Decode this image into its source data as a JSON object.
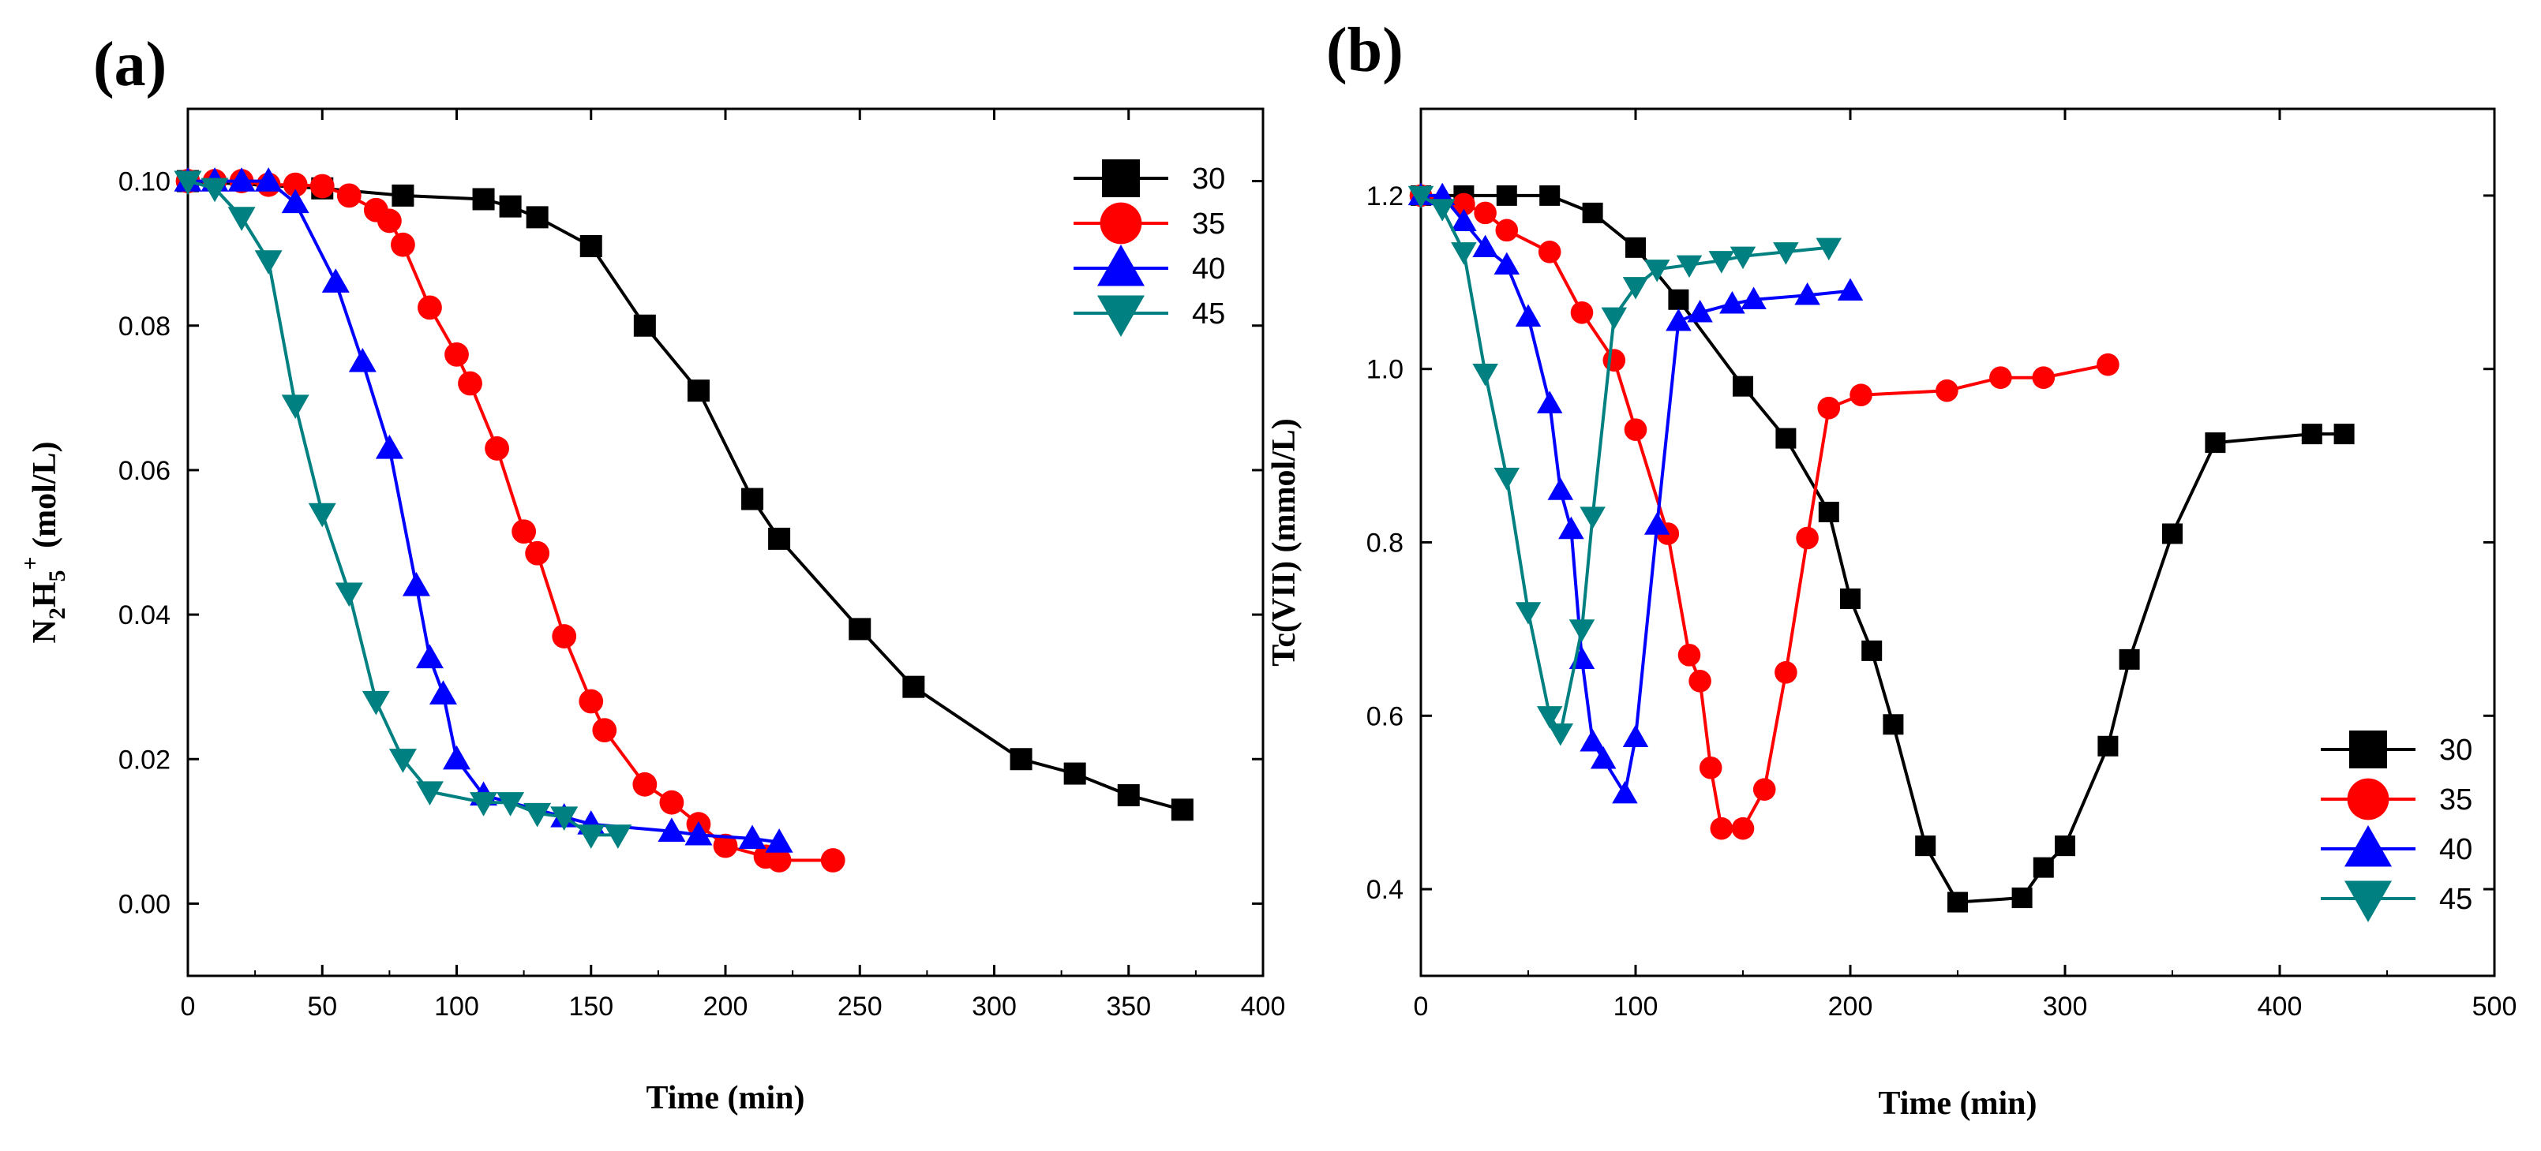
{
  "chart_data": [
    {
      "type": "line",
      "panel_label": "(a)",
      "xlabel": "Time (min)",
      "ylabel_main": "N",
      "ylabel_sub1": "2",
      "ylabel_mid": "H",
      "ylabel_sub2": "5",
      "ylabel_sup": "+",
      "ylabel_tail": " (mol/L)",
      "xlim": [
        0,
        400
      ],
      "ylim": [
        -0.01,
        0.11
      ],
      "xticks": [
        0,
        50,
        100,
        150,
        200,
        250,
        300,
        350,
        400
      ],
      "xtick_labels": [
        "0",
        "50",
        "100",
        "150",
        "200",
        "250",
        "300",
        "350",
        "400"
      ],
      "yticks": [
        0.0,
        0.02,
        0.04,
        0.06,
        0.08,
        0.1
      ],
      "ytick_labels": [
        "0.00",
        "0.02",
        "0.04",
        "0.06",
        "0.08",
        "0.10"
      ],
      "legend_position": "top-right",
      "series": [
        {
          "name": "30",
          "color": "#000000",
          "marker": "square",
          "x": [
            0,
            50,
            80,
            110,
            120,
            130,
            150,
            170,
            190,
            210,
            220,
            250,
            270,
            310,
            330,
            350,
            370
          ],
          "y": [
            0.1,
            0.099,
            0.098,
            0.0975,
            0.0965,
            0.095,
            0.091,
            0.08,
            0.071,
            0.056,
            0.0505,
            0.038,
            0.03,
            0.02,
            0.018,
            0.015,
            0.013
          ]
        },
        {
          "name": "35",
          "color": "#ff0000",
          "marker": "circle",
          "x": [
            0,
            10,
            20,
            30,
            40,
            50,
            60,
            70,
            75,
            80,
            90,
            100,
            105,
            115,
            125,
            130,
            140,
            150,
            155,
            170,
            180,
            190,
            200,
            215,
            220,
            240
          ],
          "y": [
            0.1,
            0.1,
            0.1,
            0.0995,
            0.0995,
            0.0993,
            0.098,
            0.096,
            0.0945,
            0.0912,
            0.0825,
            0.076,
            0.072,
            0.063,
            0.0515,
            0.0485,
            0.037,
            0.028,
            0.024,
            0.0165,
            0.014,
            0.011,
            0.008,
            0.0065,
            0.006,
            0.006
          ]
        },
        {
          "name": "40",
          "color": "#0000ff",
          "marker": "triangle-up",
          "x": [
            0,
            10,
            20,
            30,
            40,
            55,
            65,
            75,
            85,
            90,
            95,
            100,
            110,
            140,
            150,
            180,
            190,
            210,
            220
          ],
          "y": [
            0.1,
            0.1,
            0.1,
            0.1,
            0.097,
            0.086,
            0.075,
            0.063,
            0.044,
            0.034,
            0.029,
            0.02,
            0.015,
            0.012,
            0.011,
            0.01,
            0.0095,
            0.009,
            0.0085
          ]
        },
        {
          "name": "45",
          "color": "#008080",
          "marker": "triangle-down",
          "x": [
            0,
            10,
            20,
            30,
            40,
            50,
            60,
            70,
            80,
            90,
            110,
            120,
            130,
            140,
            150,
            160
          ],
          "y": [
            0.1,
            0.099,
            0.095,
            0.089,
            0.069,
            0.054,
            0.043,
            0.028,
            0.02,
            0.0155,
            0.014,
            0.014,
            0.0125,
            0.012,
            0.0095,
            0.0095
          ]
        }
      ]
    },
    {
      "type": "line",
      "panel_label": "(b)",
      "xlabel": "Time (min)",
      "ylabel": "Tc(VII) (mmol/L)",
      "xlim": [
        0,
        500
      ],
      "ylim": [
        0.3,
        1.3
      ],
      "xticks": [
        0,
        100,
        200,
        300,
        400,
        500
      ],
      "xtick_labels": [
        "0",
        "100",
        "200",
        "300",
        "400",
        "500"
      ],
      "yticks": [
        0.4,
        0.6,
        0.8,
        1.0,
        1.2
      ],
      "ytick_labels": [
        "0.4",
        "0.6",
        "0.8",
        "1.0",
        "1.2"
      ],
      "legend_position": "bottom-right",
      "series": [
        {
          "name": "30",
          "color": "#000000",
          "marker": "square",
          "x": [
            0,
            20,
            40,
            60,
            80,
            100,
            120,
            150,
            170,
            190,
            200,
            210,
            220,
            235,
            250,
            280,
            290,
            300,
            320,
            330,
            350,
            370,
            415,
            430
          ],
          "y": [
            1.2,
            1.2,
            1.2,
            1.2,
            1.18,
            1.14,
            1.08,
            0.98,
            0.92,
            0.835,
            0.735,
            0.675,
            0.59,
            0.45,
            0.385,
            0.39,
            0.425,
            0.45,
            0.565,
            0.665,
            0.81,
            0.915,
            0.925,
            0.925
          ]
        },
        {
          "name": "35",
          "color": "#ff0000",
          "marker": "circle",
          "x": [
            0,
            20,
            30,
            40,
            60,
            75,
            90,
            100,
            115,
            125,
            130,
            135,
            140,
            150,
            160,
            170,
            180,
            190,
            205,
            245,
            270,
            290,
            320
          ],
          "y": [
            1.2,
            1.19,
            1.18,
            1.16,
            1.135,
            1.065,
            1.01,
            0.93,
            0.81,
            0.67,
            0.64,
            0.54,
            0.47,
            0.47,
            0.515,
            0.65,
            0.805,
            0.955,
            0.97,
            0.975,
            0.99,
            0.99,
            1.005
          ]
        },
        {
          "name": "40",
          "color": "#0000ff",
          "marker": "triangle-up",
          "x": [
            0,
            10,
            20,
            30,
            40,
            50,
            60,
            65,
            70,
            75,
            80,
            85,
            95,
            100,
            110,
            120,
            130,
            145,
            155,
            180,
            200
          ],
          "y": [
            1.2,
            1.2,
            1.17,
            1.14,
            1.12,
            1.06,
            0.96,
            0.86,
            0.815,
            0.665,
            0.57,
            0.55,
            0.51,
            0.575,
            0.82,
            1.055,
            1.065,
            1.075,
            1.08,
            1.085,
            1.09
          ]
        },
        {
          "name": "45",
          "color": "#008080",
          "marker": "triangle-down",
          "x": [
            0,
            10,
            20,
            30,
            40,
            50,
            60,
            65,
            75,
            80,
            90,
            100,
            110,
            125,
            140,
            150,
            170,
            190
          ],
          "y": [
            1.2,
            1.185,
            1.135,
            0.995,
            0.875,
            0.72,
            0.6,
            0.58,
            0.7,
            0.83,
            1.06,
            1.095,
            1.115,
            1.12,
            1.125,
            1.13,
            1.135,
            1.14
          ]
        }
      ]
    }
  ]
}
